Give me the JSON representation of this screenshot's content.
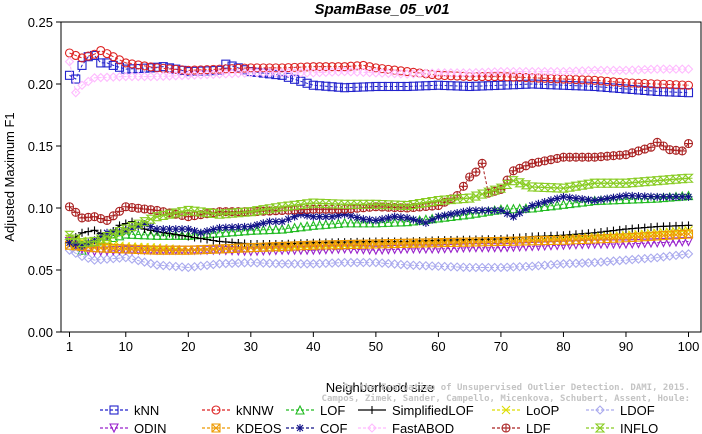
{
  "chart_data": {
    "type": "line",
    "title": "SpamBase_05_v01",
    "xlabel": "Neighborhood size",
    "ylabel": "Adjusted Maximum F1",
    "xlim": [
      1,
      100
    ],
    "ylim": [
      0,
      0.25
    ],
    "xticks": [
      "1",
      "10",
      "20",
      "30",
      "40",
      "50",
      "60",
      "70",
      "80",
      "90",
      "100"
    ],
    "yticks": [
      "0.00",
      "0.05",
      "0.10",
      "0.15",
      "0.20",
      "0.25"
    ],
    "legend_position": "bottom",
    "watermark": "Campos, Zimek, Sander, Campello, Micenkova, Schubert, Assent, Houle: On the Evaluation of Unsupervised Outlier Detection. DAMI, 2015.",
    "series": [
      {
        "name": "kNN",
        "color": "#2222cc",
        "marker": "square",
        "dashed": true,
        "keyframes": [
          [
            1,
            0.207
          ],
          [
            2,
            0.204
          ],
          [
            3,
            0.215
          ],
          [
            4,
            0.222
          ],
          [
            5,
            0.223
          ],
          [
            6,
            0.217
          ],
          [
            7,
            0.217
          ],
          [
            8,
            0.215
          ],
          [
            10,
            0.212
          ],
          [
            14,
            0.213
          ],
          [
            16,
            0.214
          ],
          [
            20,
            0.21
          ],
          [
            25,
            0.211
          ],
          [
            26,
            0.216
          ],
          [
            30,
            0.21
          ],
          [
            35,
            0.207
          ],
          [
            40,
            0.199
          ],
          [
            45,
            0.197
          ],
          [
            50,
            0.198
          ],
          [
            55,
            0.198
          ],
          [
            60,
            0.199
          ],
          [
            65,
            0.198
          ],
          [
            70,
            0.199
          ],
          [
            75,
            0.2
          ],
          [
            80,
            0.199
          ],
          [
            85,
            0.198
          ],
          [
            90,
            0.196
          ],
          [
            95,
            0.194
          ],
          [
            100,
            0.193
          ]
        ]
      },
      {
        "name": "kNNW",
        "color": "#dd2222",
        "marker": "circle",
        "dashed": true,
        "keyframes": [
          [
            1,
            0.225
          ],
          [
            3,
            0.221
          ],
          [
            5,
            0.224
          ],
          [
            6,
            0.227
          ],
          [
            8,
            0.222
          ],
          [
            10,
            0.217
          ],
          [
            15,
            0.213
          ],
          [
            20,
            0.211
          ],
          [
            25,
            0.212
          ],
          [
            30,
            0.213
          ],
          [
            35,
            0.213
          ],
          [
            40,
            0.214
          ],
          [
            45,
            0.214
          ],
          [
            48,
            0.215
          ],
          [
            50,
            0.213
          ],
          [
            55,
            0.21
          ],
          [
            60,
            0.207
          ],
          [
            65,
            0.206
          ],
          [
            70,
            0.206
          ],
          [
            75,
            0.205
          ],
          [
            80,
            0.204
          ],
          [
            85,
            0.203
          ],
          [
            90,
            0.201
          ],
          [
            95,
            0.2
          ],
          [
            100,
            0.199
          ]
        ]
      },
      {
        "name": "LOF",
        "color": "#22bb22",
        "marker": "triangle-up",
        "dashed": true,
        "keyframes": [
          [
            1,
            0.075
          ],
          [
            3,
            0.066
          ],
          [
            5,
            0.072
          ],
          [
            10,
            0.079
          ],
          [
            15,
            0.078
          ],
          [
            20,
            0.078
          ],
          [
            25,
            0.08
          ],
          [
            30,
            0.082
          ],
          [
            35,
            0.083
          ],
          [
            40,
            0.086
          ],
          [
            45,
            0.088
          ],
          [
            50,
            0.088
          ],
          [
            55,
            0.089
          ],
          [
            60,
            0.092
          ],
          [
            65,
            0.095
          ],
          [
            70,
            0.099
          ],
          [
            75,
            0.1
          ],
          [
            80,
            0.103
          ],
          [
            85,
            0.106
          ],
          [
            90,
            0.107
          ],
          [
            95,
            0.108
          ],
          [
            100,
            0.11
          ]
        ]
      },
      {
        "name": "SimplifiedLOF",
        "color": "#000000",
        "marker": "plus",
        "dashed": false,
        "keyframes": [
          [
            1,
            0.073
          ],
          [
            3,
            0.08
          ],
          [
            5,
            0.082
          ],
          [
            7,
            0.077
          ],
          [
            9,
            0.086
          ],
          [
            11,
            0.089
          ],
          [
            13,
            0.083
          ],
          [
            15,
            0.081
          ],
          [
            20,
            0.077
          ],
          [
            25,
            0.073
          ],
          [
            30,
            0.071
          ],
          [
            35,
            0.071
          ],
          [
            40,
            0.072
          ],
          [
            50,
            0.073
          ],
          [
            55,
            0.073
          ],
          [
            60,
            0.074
          ],
          [
            70,
            0.075
          ],
          [
            75,
            0.077
          ],
          [
            80,
            0.078
          ],
          [
            85,
            0.08
          ],
          [
            90,
            0.083
          ],
          [
            95,
            0.085
          ],
          [
            100,
            0.086
          ]
        ]
      },
      {
        "name": "LoOP",
        "color": "#dddd00",
        "marker": "x",
        "dashed": true,
        "keyframes": [
          [
            1,
            0.075
          ],
          [
            5,
            0.072
          ],
          [
            10,
            0.069
          ],
          [
            15,
            0.068
          ],
          [
            20,
            0.066
          ],
          [
            25,
            0.067
          ],
          [
            30,
            0.068
          ],
          [
            35,
            0.068
          ],
          [
            40,
            0.069
          ],
          [
            50,
            0.07
          ],
          [
            60,
            0.071
          ],
          [
            70,
            0.073
          ],
          [
            80,
            0.075
          ],
          [
            90,
            0.078
          ],
          [
            100,
            0.082
          ]
        ]
      },
      {
        "name": "LDOF",
        "color": "#aaaaee",
        "marker": "diamond",
        "dashed": true,
        "keyframes": [
          [
            1,
            0.066
          ],
          [
            3,
            0.061
          ],
          [
            5,
            0.058
          ],
          [
            10,
            0.06
          ],
          [
            15,
            0.054
          ],
          [
            20,
            0.052
          ],
          [
            25,
            0.055
          ],
          [
            30,
            0.056
          ],
          [
            35,
            0.055
          ],
          [
            40,
            0.055
          ],
          [
            45,
            0.056
          ],
          [
            50,
            0.056
          ],
          [
            55,
            0.054
          ],
          [
            60,
            0.053
          ],
          [
            65,
            0.052
          ],
          [
            70,
            0.052
          ],
          [
            75,
            0.053
          ],
          [
            80,
            0.055
          ],
          [
            85,
            0.056
          ],
          [
            90,
            0.058
          ],
          [
            95,
            0.06
          ],
          [
            100,
            0.063
          ]
        ]
      },
      {
        "name": "ODIN",
        "color": "#9922cc",
        "marker": "triangle-down",
        "dashed": true,
        "keyframes": [
          [
            1,
            0.073
          ],
          [
            3,
            0.067
          ],
          [
            5,
            0.065
          ],
          [
            10,
            0.066
          ],
          [
            15,
            0.066
          ],
          [
            20,
            0.066
          ],
          [
            25,
            0.066
          ],
          [
            30,
            0.065
          ],
          [
            35,
            0.066
          ],
          [
            40,
            0.066
          ],
          [
            45,
            0.067
          ],
          [
            50,
            0.066
          ],
          [
            55,
            0.067
          ],
          [
            60,
            0.067
          ],
          [
            65,
            0.068
          ],
          [
            70,
            0.068
          ],
          [
            75,
            0.069
          ],
          [
            80,
            0.07
          ],
          [
            85,
            0.071
          ],
          [
            90,
            0.071
          ],
          [
            95,
            0.072
          ],
          [
            100,
            0.073
          ]
        ]
      },
      {
        "name": "KDEOS",
        "color": "#ee9900",
        "marker": "square-x",
        "dashed": true,
        "keyframes": [
          [
            1,
            0.07
          ],
          [
            5,
            0.068
          ],
          [
            10,
            0.067
          ],
          [
            15,
            0.066
          ],
          [
            20,
            0.066
          ],
          [
            25,
            0.067
          ],
          [
            30,
            0.068
          ],
          [
            40,
            0.07
          ],
          [
            50,
            0.071
          ],
          [
            60,
            0.072
          ],
          [
            70,
            0.073
          ],
          [
            80,
            0.074
          ],
          [
            90,
            0.076
          ],
          [
            100,
            0.079
          ]
        ]
      },
      {
        "name": "COF",
        "color": "#111188",
        "marker": "asterisk",
        "dashed": true,
        "keyframes": [
          [
            1,
            0.072
          ],
          [
            3,
            0.07
          ],
          [
            5,
            0.074
          ],
          [
            7,
            0.08
          ],
          [
            10,
            0.082
          ],
          [
            13,
            0.087
          ],
          [
            15,
            0.083
          ],
          [
            20,
            0.083
          ],
          [
            22,
            0.08
          ],
          [
            25,
            0.084
          ],
          [
            30,
            0.085
          ],
          [
            33,
            0.089
          ],
          [
            35,
            0.089
          ],
          [
            38,
            0.095
          ],
          [
            40,
            0.093
          ],
          [
            43,
            0.093
          ],
          [
            45,
            0.095
          ],
          [
            48,
            0.091
          ],
          [
            50,
            0.09
          ],
          [
            53,
            0.093
          ],
          [
            55,
            0.092
          ],
          [
            58,
            0.088
          ],
          [
            60,
            0.093
          ],
          [
            65,
            0.098
          ],
          [
            70,
            0.098
          ],
          [
            72,
            0.093
          ],
          [
            75,
            0.102
          ],
          [
            80,
            0.109
          ],
          [
            85,
            0.106
          ],
          [
            90,
            0.11
          ],
          [
            95,
            0.109
          ],
          [
            100,
            0.109
          ]
        ]
      },
      {
        "name": "FastABOD",
        "color": "#ffbbff",
        "marker": "diamond",
        "dashed": true,
        "keyframes": [
          [
            1,
            0.218
          ],
          [
            2,
            0.193
          ],
          [
            3,
            0.199
          ],
          [
            5,
            0.205
          ],
          [
            10,
            0.206
          ],
          [
            15,
            0.206
          ],
          [
            20,
            0.207
          ],
          [
            25,
            0.208
          ],
          [
            30,
            0.209
          ],
          [
            35,
            0.209
          ],
          [
            40,
            0.209
          ],
          [
            45,
            0.21
          ],
          [
            50,
            0.209
          ],
          [
            55,
            0.208
          ],
          [
            60,
            0.209
          ],
          [
            65,
            0.209
          ],
          [
            70,
            0.21
          ],
          [
            75,
            0.21
          ],
          [
            80,
            0.21
          ],
          [
            85,
            0.211
          ],
          [
            90,
            0.211
          ],
          [
            95,
            0.212
          ],
          [
            100,
            0.212
          ]
        ]
      },
      {
        "name": "LDF",
        "color": "#aa2222",
        "marker": "circle-plus",
        "dashed": true,
        "keyframes": [
          [
            1,
            0.101
          ],
          [
            3,
            0.092
          ],
          [
            5,
            0.093
          ],
          [
            7,
            0.09
          ],
          [
            10,
            0.101
          ],
          [
            15,
            0.098
          ],
          [
            20,
            0.093
          ],
          [
            25,
            0.097
          ],
          [
            30,
            0.097
          ],
          [
            35,
            0.098
          ],
          [
            40,
            0.099
          ],
          [
            45,
            0.099
          ],
          [
            50,
            0.101
          ],
          [
            55,
            0.1
          ],
          [
            60,
            0.102
          ],
          [
            63,
            0.11
          ],
          [
            65,
            0.125
          ],
          [
            66,
            0.129
          ],
          [
            67,
            0.136
          ],
          [
            68,
            0.112
          ],
          [
            70,
            0.115
          ],
          [
            72,
            0.13
          ],
          [
            75,
            0.136
          ],
          [
            80,
            0.141
          ],
          [
            85,
            0.141
          ],
          [
            90,
            0.143
          ],
          [
            94,
            0.149
          ],
          [
            95,
            0.153
          ],
          [
            97,
            0.147
          ],
          [
            99,
            0.146
          ],
          [
            100,
            0.152
          ]
        ]
      },
      {
        "name": "INFLO",
        "color": "#88cc22",
        "marker": "hourglass",
        "dashed": true,
        "keyframes": [
          [
            1,
            0.078
          ],
          [
            3,
            0.072
          ],
          [
            5,
            0.073
          ],
          [
            10,
            0.083
          ],
          [
            15,
            0.093
          ],
          [
            20,
            0.098
          ],
          [
            25,
            0.095
          ],
          [
            30,
            0.097
          ],
          [
            35,
            0.101
          ],
          [
            40,
            0.104
          ],
          [
            45,
            0.103
          ],
          [
            50,
            0.103
          ],
          [
            55,
            0.102
          ],
          [
            60,
            0.106
          ],
          [
            65,
            0.108
          ],
          [
            70,
            0.116
          ],
          [
            72,
            0.122
          ],
          [
            75,
            0.117
          ],
          [
            80,
            0.116
          ],
          [
            85,
            0.12
          ],
          [
            90,
            0.12
          ],
          [
            95,
            0.122
          ],
          [
            100,
            0.124
          ]
        ]
      }
    ]
  }
}
